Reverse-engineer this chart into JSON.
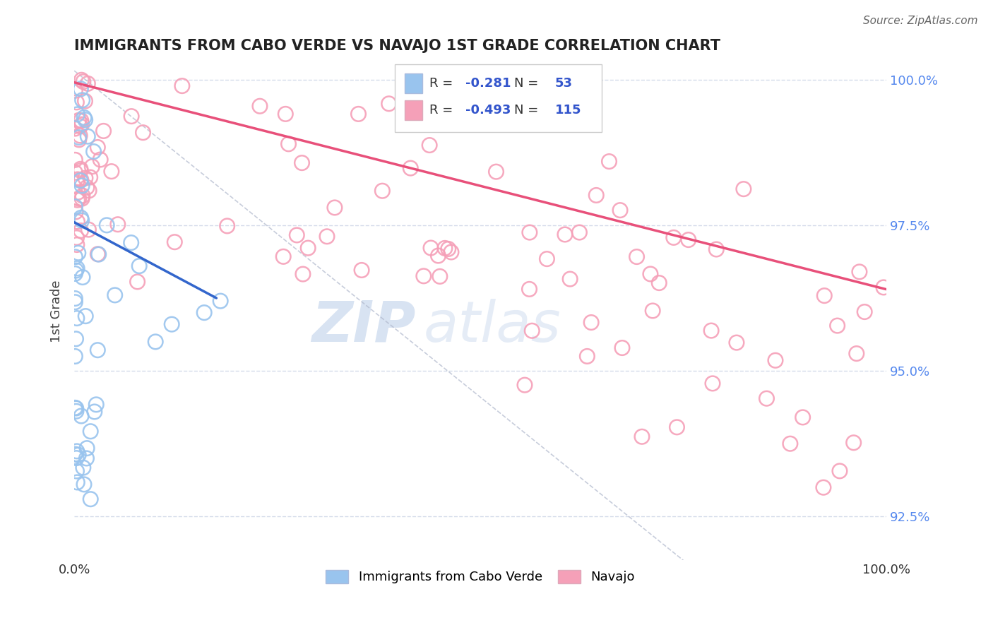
{
  "title": "IMMIGRANTS FROM CABO VERDE VS NAVAJO 1ST GRADE CORRELATION CHART",
  "source_text": "Source: ZipAtlas.com",
  "ylabel": "1st Grade",
  "legend_blue_label": "Immigrants from Cabo Verde",
  "legend_pink_label": "Navajo",
  "R_blue": -0.281,
  "N_blue": 53,
  "R_pink": -0.493,
  "N_pink": 115,
  "blue_color": "#99c4ee",
  "pink_color": "#f5a0b8",
  "blue_line_color": "#3366cc",
  "pink_line_color": "#e8507a",
  "xmin": 0.0,
  "xmax": 1.0,
  "ymin": 0.9175,
  "ymax": 1.003,
  "ytick_vals": [
    0.925,
    0.95,
    0.975,
    1.0
  ],
  "ytick_labels": [
    "92.5%",
    "95.0%",
    "97.5%",
    "100.0%"
  ],
  "watermark_text": "ZIPatlas",
  "background_color": "#ffffff",
  "grid_color": "#d0d8e8"
}
